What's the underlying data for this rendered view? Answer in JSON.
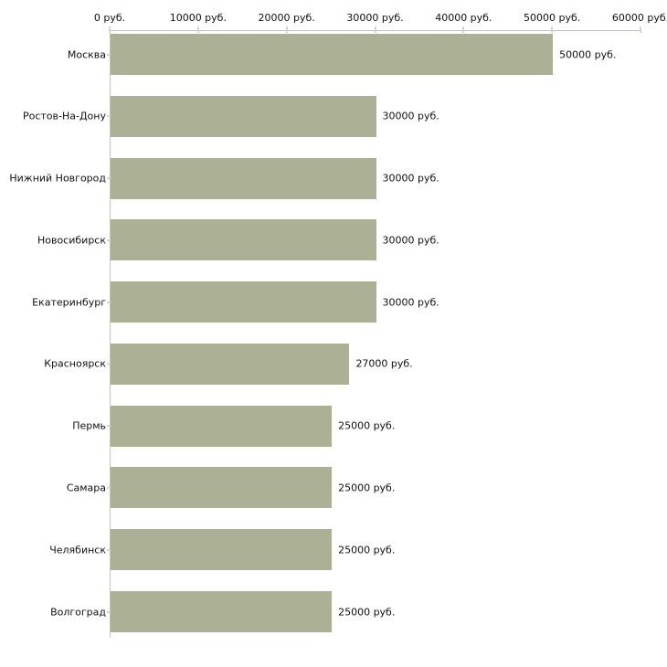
{
  "chart_data": {
    "type": "bar",
    "orientation": "horizontal",
    "title": "",
    "xlabel": "",
    "ylabel": "",
    "unit": "руб.",
    "categories": [
      "Москва",
      "Ростов-На-Дону",
      "Нижний Новгород",
      "Новосибирск",
      "Екатеринбург",
      "Красноярск",
      "Пермь",
      "Самара",
      "Челябинск",
      "Волгоград"
    ],
    "values": [
      50000,
      30000,
      30000,
      30000,
      30000,
      27000,
      25000,
      25000,
      25000,
      25000
    ],
    "value_labels": [
      "50000 руб.",
      "30000 руб.",
      "30000 руб.",
      "30000 руб.",
      "30000 руб.",
      "27000 руб.",
      "25000 руб.",
      "25000 руб.",
      "25000 руб.",
      "25000 руб."
    ],
    "x_axis": {
      "xlim": [
        0,
        60000
      ],
      "ticks": [
        {
          "value": 0,
          "label": "0 руб."
        },
        {
          "value": 10000,
          "label": "10000 руб."
        },
        {
          "value": 20000,
          "label": "20000 руб."
        },
        {
          "value": 30000,
          "label": "30000 руб."
        },
        {
          "value": 40000,
          "label": "40000 руб."
        },
        {
          "value": 50000,
          "label": "50000 руб."
        },
        {
          "value": 60000,
          "label": "60000 руб."
        }
      ],
      "position": "top"
    },
    "grid": false,
    "legend": "none",
    "colors": {
      "bar": "#acb196",
      "axis_line": "#c2c2ba",
      "tick_mark": "#d8dab0",
      "text": "#111111",
      "background": "#ffffff"
    }
  }
}
